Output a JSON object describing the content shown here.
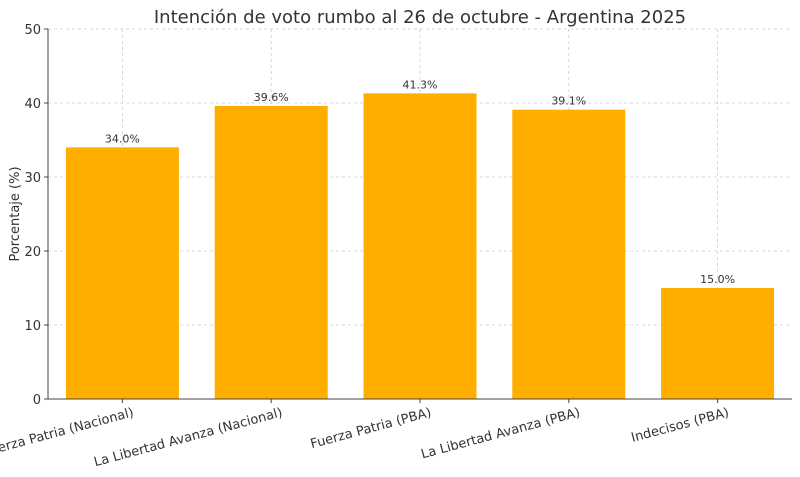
{
  "chart_data": {
    "type": "bar",
    "title": "Intención de voto rumbo al 26 de octubre - Argentina 2025",
    "xlabel": "",
    "ylabel": "Porcentaje (%)",
    "categories": [
      "Fuerza Patria (Nacional)",
      "La Libertad Avanza (Nacional)",
      "Fuerza Patria (PBA)",
      "La Libertad Avanza (PBA)",
      "Indecisos (PBA)"
    ],
    "values": [
      34.0,
      39.6,
      41.3,
      39.1,
      15.0
    ],
    "data_labels": [
      "34.0%",
      "39.6%",
      "41.3%",
      "39.1%",
      "15.0%"
    ],
    "ylim": [
      0,
      50
    ],
    "yticks": [
      0,
      10,
      20,
      30,
      40,
      50
    ],
    "grid": true,
    "bar_color": "#FFAE00"
  }
}
